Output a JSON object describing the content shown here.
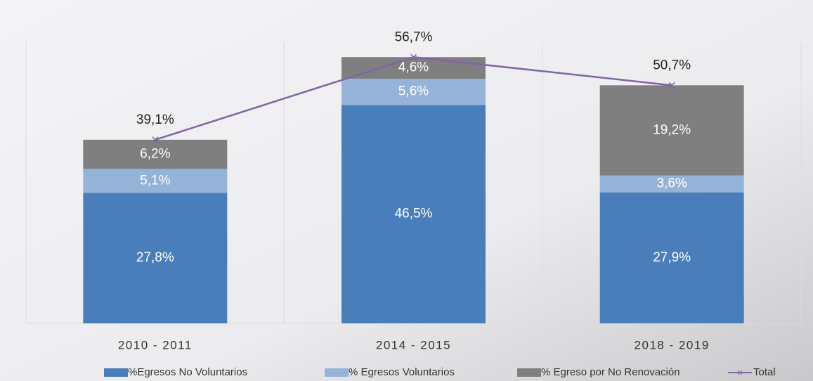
{
  "chart_data": {
    "type": "bar",
    "stacked": true,
    "categories": [
      "2010 - 2011",
      "2014 - 2015",
      "2018 - 2019"
    ],
    "series": [
      {
        "name": "%Egresos No Voluntarios",
        "color": "#4a7ebb",
        "values": [
          27.8,
          46.5,
          27.9
        ],
        "value_labels": [
          "27,8%",
          "46,5%",
          "27,9%"
        ]
      },
      {
        "name": "% Egresos Voluntarios",
        "color": "#95b3d7",
        "values": [
          5.1,
          5.6,
          3.6
        ],
        "value_labels": [
          "5,1%",
          "5,6%",
          "3,6%"
        ]
      },
      {
        "name": "% Egreso por No Renovación",
        "color": "#7f7f7f",
        "values": [
          6.2,
          4.6,
          19.2
        ],
        "value_labels": [
          "6,2%",
          "4,6%",
          "19,2%"
        ]
      },
      {
        "name": "Total",
        "type": "line",
        "color": "#8064a2",
        "values": [
          39.1,
          56.7,
          50.7
        ],
        "value_labels": [
          "39,1%",
          "56,7%",
          "50,7%"
        ]
      }
    ]
  }
}
